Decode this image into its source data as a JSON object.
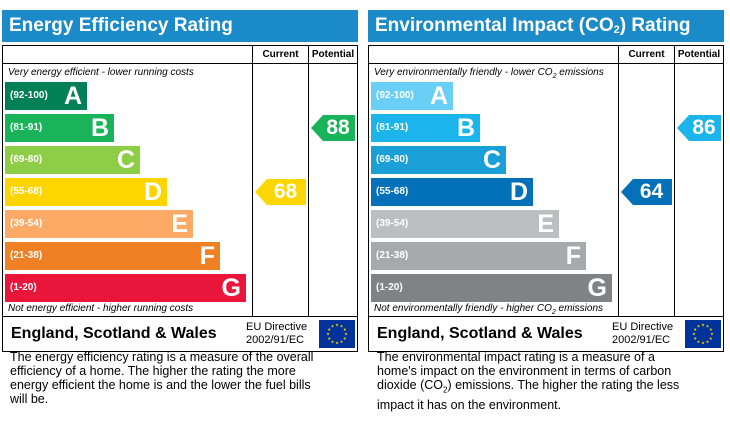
{
  "chart_data": [
    {
      "type": "bar",
      "title": "Energy Efficiency Rating",
      "columns": [
        "Current",
        "Potential"
      ],
      "top_caption": "Very energy efficient - lower running costs",
      "bottom_caption": "Not energy efficient - higher running costs",
      "categories": [
        {
          "range": "(92-100)",
          "letter": "A",
          "color": "#008054"
        },
        {
          "range": "(81-91)",
          "letter": "B",
          "color": "#19b459"
        },
        {
          "range": "(69-80)",
          "letter": "C",
          "color": "#8dce46"
        },
        {
          "range": "(55-68)",
          "letter": "D",
          "color": "#ffd500"
        },
        {
          "range": "(39-54)",
          "letter": "E",
          "color": "#fcaa65"
        },
        {
          "range": "(21-38)",
          "letter": "F",
          "color": "#ef8023"
        },
        {
          "range": "(1-20)",
          "letter": "G",
          "color": "#e9153b"
        }
      ],
      "current": 68,
      "potential": 88,
      "current_band": "D",
      "potential_band": "B",
      "description": "The energy efficiency rating is a measure of the overall efficiency of a home. The higher the rating the more energy efficient the home is and the lower the fuel bills will be."
    },
    {
      "type": "bar",
      "title": "Environmental Impact (CO2) Rating",
      "columns": [
        "Current",
        "Potential"
      ],
      "top_caption": "Very environmentally friendly - lower CO2 emissions",
      "bottom_caption": "Not environmentally friendly - higher CO2 emissions",
      "categories": [
        {
          "range": "(92-100)",
          "letter": "A",
          "color": "#6acff6"
        },
        {
          "range": "(81-91)",
          "letter": "B",
          "color": "#1bb5ec"
        },
        {
          "range": "(69-80)",
          "letter": "C",
          "color": "#1a9fd6"
        },
        {
          "range": "(55-68)",
          "letter": "D",
          "color": "#0271b9"
        },
        {
          "range": "(39-54)",
          "letter": "E",
          "color": "#bcbec0"
        },
        {
          "range": "(21-38)",
          "letter": "F",
          "color": "#a7a9ac"
        },
        {
          "range": "(1-20)",
          "letter": "G",
          "color": "#808285"
        }
      ],
      "current": 64,
      "potential": 86,
      "current_band": "D",
      "potential_band": "B",
      "description": "The environmental impact rating is a measure of a home's impact on the environment in terms of carbon dioxide (CO2) emissions. The higher the rating the less impact it has on the environment."
    }
  ],
  "footer": {
    "region": "England, Scotland & Wales",
    "directive_line1": "EU Directive",
    "directive_line2": "2002/91/EC"
  },
  "colors": {
    "header_blue": "#1b8ac9",
    "eu_flag_blue": "#003399",
    "eu_flag_stars": "#ffcc00"
  }
}
